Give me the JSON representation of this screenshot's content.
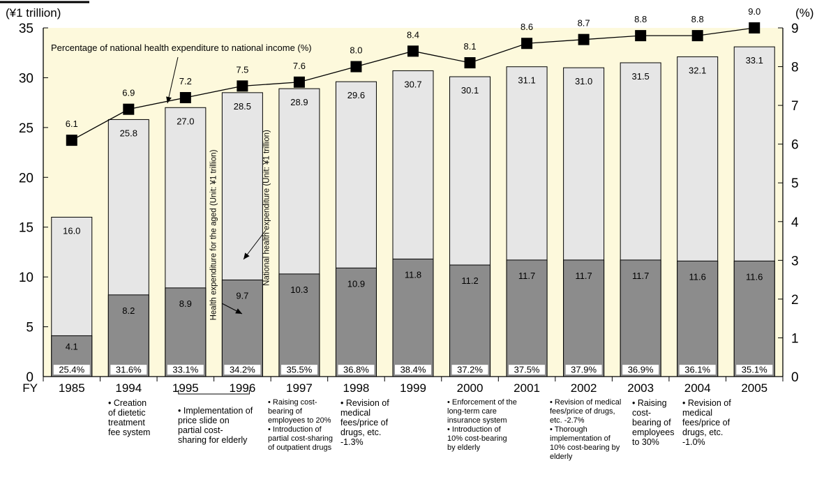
{
  "chart_data": {
    "type": "bar",
    "y_left_label": "(¥1 trillion)",
    "y_right_label": "(%)",
    "x_prefix": "FY",
    "ylim_left": [
      0,
      35
    ],
    "ylim_right": [
      0,
      9
    ],
    "left_ticks": [
      "0",
      "5",
      "10",
      "15",
      "20",
      "25",
      "30",
      "35"
    ],
    "right_ticks": [
      "0",
      "1",
      "2",
      "3",
      "4",
      "5",
      "6",
      "7",
      "8",
      "9"
    ],
    "categories": [
      "1985",
      "1994",
      "1995",
      "1996",
      "1997",
      "1998",
      "1999",
      "2000",
      "2001",
      "2002",
      "2003",
      "2004",
      "2005"
    ],
    "series": [
      {
        "name": "National health expenditure (Unit: ¥1 trillion)",
        "values": [
          16.0,
          25.8,
          27.0,
          28.5,
          28.9,
          29.6,
          30.7,
          30.1,
          31.1,
          31.0,
          31.5,
          32.1,
          33.1
        ],
        "labels": [
          "16.0",
          "25.8",
          "27.0",
          "28.5",
          "28.9",
          "29.6",
          "30.7",
          "30.1",
          "31.1",
          "31.0",
          "31.5",
          "32.1",
          "33.1"
        ],
        "color": "#e6e6e6"
      },
      {
        "name": "Health expenditure for the aged (Unit: ¥1 trillion)",
        "values": [
          4.1,
          8.2,
          8.9,
          9.7,
          10.3,
          10.9,
          11.8,
          11.2,
          11.7,
          11.7,
          11.7,
          11.6,
          11.6
        ],
        "labels": [
          "4.1",
          "8.2",
          "8.9",
          "9.7",
          "10.3",
          "10.9",
          "11.8",
          "11.2",
          "11.7",
          "11.7",
          "11.7",
          "11.6",
          "11.6"
        ],
        "color": "#8c8c8c"
      },
      {
        "name": "Percentage of national health expenditure to national income (%)",
        "values": [
          6.1,
          6.9,
          7.2,
          7.5,
          7.6,
          8.0,
          8.4,
          8.1,
          8.6,
          8.7,
          8.8,
          8.8,
          9.0
        ],
        "labels": [
          "6.1",
          "6.9",
          "7.2",
          "7.5",
          "7.6",
          "8.0",
          "8.4",
          "8.1",
          "8.6",
          "8.7",
          "8.8",
          "8.8",
          "9.0"
        ],
        "axis": "right"
      }
    ],
    "share_labels": [
      "25.4%",
      "31.6%",
      "33.1%",
      "34.2%",
      "35.5%",
      "36.8%",
      "38.4%",
      "37.2%",
      "37.5%",
      "37.9%",
      "36.9%",
      "36.1%",
      "35.1%"
    ],
    "annotations": {
      "line_label": "Percentage of national health expenditure to national income (%)",
      "total_label": "National health expenditure (Unit: ¥1 trillion)",
      "aged_label": "Health expenditure for the aged (Unit: ¥1 trillion)"
    },
    "background_color": "#fdf9dc"
  },
  "notes": [
    "• Creation\nof dietetic\ntreatment\nfee system",
    "• Implementation of\nprice slide on\npartial cost-\nsharing for elderly",
    "• Raising cost-\nbearing of\nemployees to 20%\n• Introduction of\npartial cost-sharing\nof outpatient drugs",
    "• Revision of\nmedical\nfees/price of\ndrugs, etc.\n-1.3%",
    "• Enforcement of the\nlong-term care\ninsurance system\n• Introduction of\n10% cost-bearing\nby elderly",
    "• Revision of medical\nfees/price of drugs,\netc. -2.7%\n• Thorough\nimplementation of\n10% cost-bearing by\nelderly",
    "• Raising\ncost-\nbearing of\nemployees\nto 30%",
    "• Revision of\nmedical\nfees/price of\ndrugs, etc.\n-1.0%"
  ]
}
